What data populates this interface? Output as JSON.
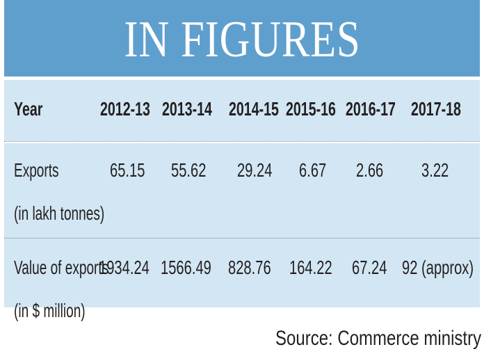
{
  "header": {
    "title": "IN FIGURES"
  },
  "colors": {
    "banner": "#5f9fcd",
    "band": "#d2e6f3",
    "text": "#231f20"
  },
  "chart_data": {
    "type": "table",
    "title": "IN FIGURES",
    "columns": [
      "Year",
      "2012-13",
      "2013-14",
      "2014-15",
      "2015-16",
      "2016-17",
      "2017-18"
    ],
    "rows": [
      {
        "label": [
          "Exports",
          "(in lakh tonnes)"
        ],
        "values": [
          "65.15",
          "55.62",
          "29.24",
          "6.67",
          "2.66",
          "3.22"
        ]
      },
      {
        "label": [
          "Value of exports",
          "(in $ million)"
        ],
        "values": [
          "1934.24",
          "1566.49",
          "828.76",
          "164.22",
          "67.24",
          "92 (approx)"
        ]
      }
    ],
    "source": "Source: Commerce ministry"
  }
}
